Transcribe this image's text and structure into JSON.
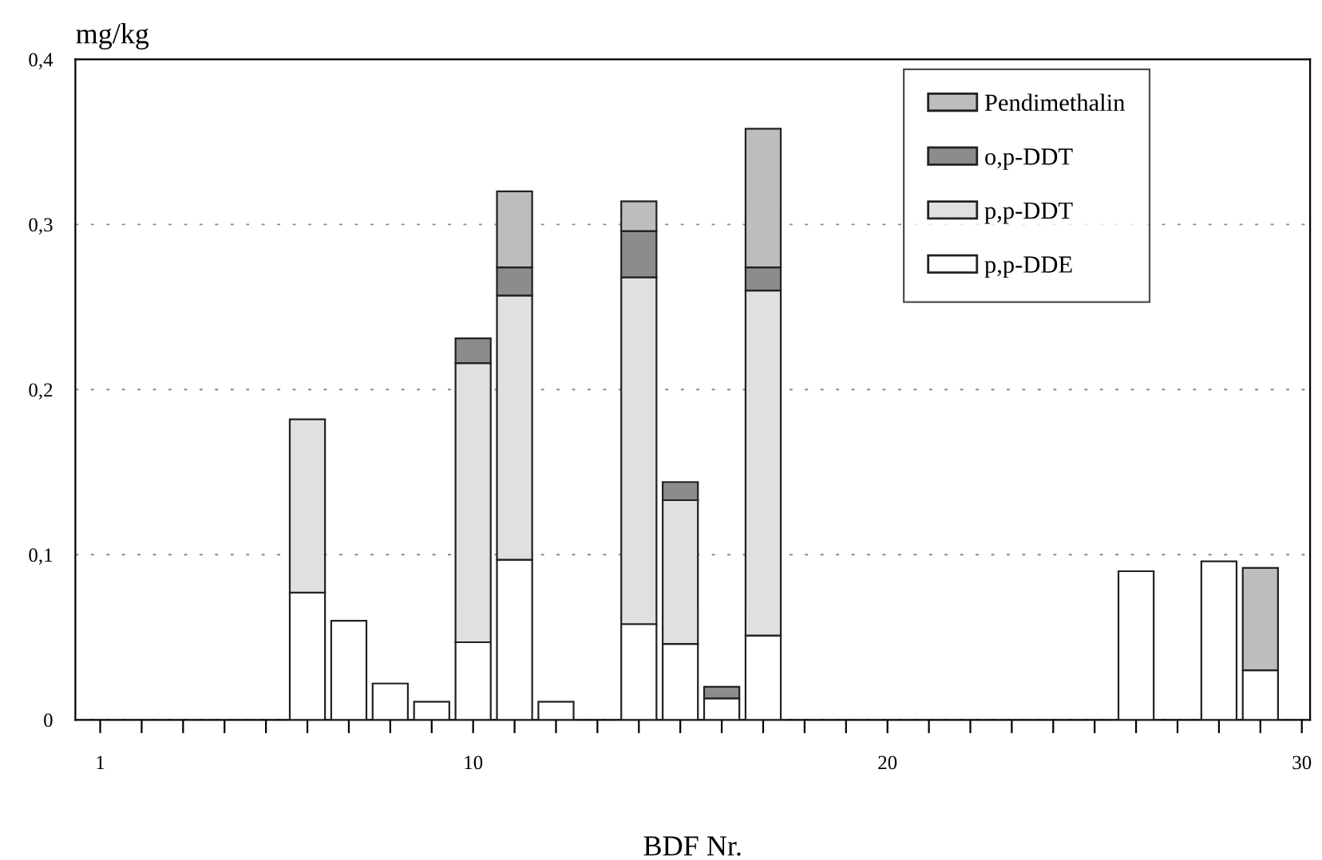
{
  "chart_data": {
    "type": "bar",
    "stacked": true,
    "ylabel": "mg/kg",
    "xlabel": "BDF Nr.",
    "x": [
      6,
      7,
      8,
      9,
      10,
      11,
      12,
      14,
      15,
      16,
      17,
      26,
      28,
      29
    ],
    "series": [
      {
        "name": "p,p-DDE",
        "color": "#ffffff",
        "values": [
          0.077,
          0.06,
          0.022,
          0.011,
          0.047,
          0.097,
          0.011,
          0.058,
          0.046,
          0.013,
          0.051,
          0.09,
          0.096,
          0.03
        ]
      },
      {
        "name": "p,p-DDT",
        "color": "#e0e0e0",
        "values": [
          0.105,
          null,
          null,
          null,
          0.169,
          0.16,
          null,
          0.21,
          0.087,
          null,
          0.209,
          null,
          null,
          null
        ]
      },
      {
        "name": "o,p-DDT",
        "color": "#8c8c8c",
        "values": [
          null,
          null,
          null,
          null,
          0.015,
          0.017,
          null,
          0.028,
          0.011,
          0.007,
          0.014,
          null,
          null,
          null
        ]
      },
      {
        "name": "Pendimethalin",
        "color": "#bdbdbd",
        "values": [
          null,
          null,
          null,
          null,
          null,
          0.046,
          null,
          0.018,
          null,
          null,
          0.084,
          null,
          null,
          0.062
        ]
      }
    ],
    "xlim": [
      0.4,
      30.2
    ],
    "xticks": [
      {
        "value": 1,
        "label": "1"
      },
      {
        "value": 2,
        "label": null
      },
      {
        "value": 3,
        "label": null
      },
      {
        "value": 4,
        "label": null
      },
      {
        "value": 5,
        "label": null
      },
      {
        "value": 6,
        "label": null
      },
      {
        "value": 7,
        "label": null
      },
      {
        "value": 8,
        "label": null
      },
      {
        "value": 9,
        "label": null
      },
      10,
      {
        "value": 11,
        "label": null
      },
      {
        "value": 12,
        "label": null
      },
      {
        "value": 13,
        "label": null
      },
      {
        "value": 14,
        "label": null
      },
      {
        "value": 15,
        "label": null
      },
      {
        "value": 16,
        "label": null
      },
      {
        "value": 17,
        "label": null
      },
      {
        "value": 18,
        "label": null
      },
      {
        "value": 19,
        "label": null
      },
      20,
      {
        "value": 21,
        "label": null
      },
      {
        "value": 22,
        "label": null
      },
      {
        "value": 23,
        "label": null
      },
      {
        "value": 24,
        "label": null
      },
      {
        "value": 25,
        "label": null
      },
      {
        "value": 26,
        "label": null
      },
      {
        "value": 27,
        "label": null
      },
      {
        "value": 28,
        "label": null
      },
      {
        "value": 29,
        "label": null
      },
      30
    ],
    "ylim": [
      0,
      0.4
    ],
    "yticks": [
      0,
      {
        "value": 0.1,
        "label": "0,1"
      },
      {
        "value": 0.2,
        "label": "0,2"
      },
      {
        "value": 0.3,
        "label": "0,3"
      },
      {
        "value": 0.4,
        "label": "0,4"
      }
    ],
    "grid": "y",
    "legend": "top right"
  }
}
